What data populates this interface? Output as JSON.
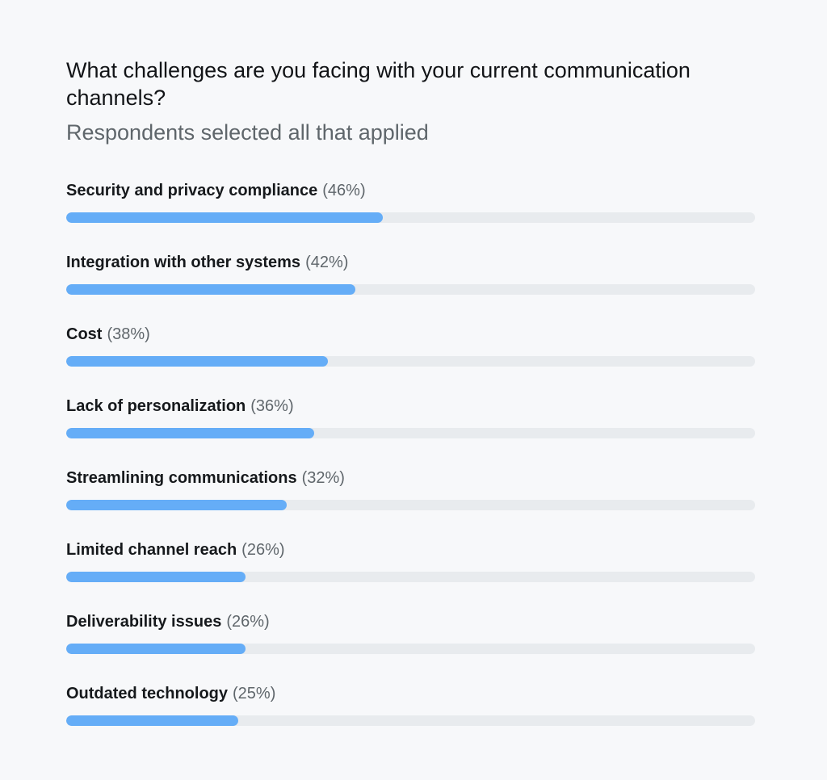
{
  "chart_data": {
    "type": "bar",
    "orientation": "horizontal",
    "title": "What challenges are you facing with your current communication channels?",
    "subtitle": "Respondents selected all that applied",
    "categories": [
      "Security and privacy compliance",
      "Integration with other systems",
      "Cost",
      "Lack of personalization",
      "Streamlining communications",
      "Limited channel reach",
      "Deliverability issues",
      "Outdated technology"
    ],
    "values": [
      46,
      42,
      38,
      36,
      32,
      26,
      26,
      25
    ],
    "value_labels": [
      "(46%)",
      "(42%)",
      "(38%)",
      "(36%)",
      "(32%)",
      "(26%)",
      "(26%)",
      "(25%)"
    ],
    "xlim": [
      0,
      100
    ],
    "grid": false,
    "legend": "none",
    "colors": {
      "bar": "#65adf7",
      "track": "#e8ebee",
      "background": "#f7f8fa",
      "title": "#121417",
      "muted_text": "#5f666b"
    }
  }
}
